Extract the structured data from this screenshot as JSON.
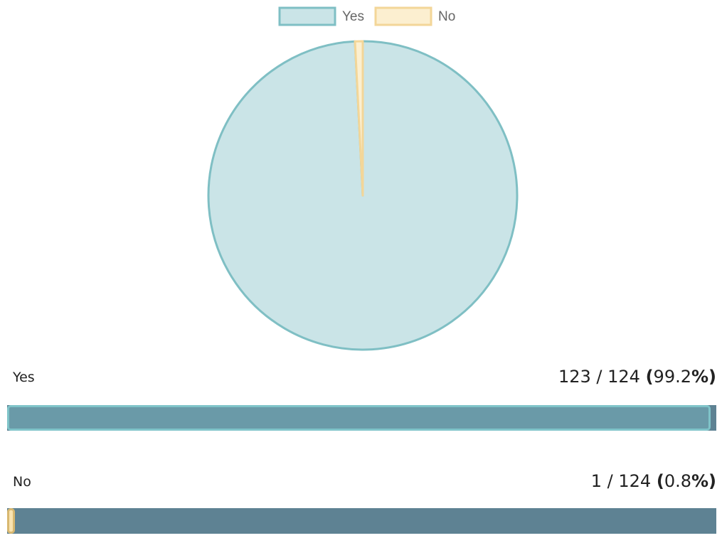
{
  "chart_data": {
    "type": "pie",
    "categories": [
      "Yes",
      "No"
    ],
    "values": [
      123,
      1
    ],
    "total": 124,
    "legend_position": "top",
    "colors": {
      "fill": [
        "#cae4e7",
        "#fcefd0"
      ],
      "border": [
        "#7fbfc4",
        "#f3d698"
      ]
    }
  },
  "results": [
    {
      "label": "Yes",
      "count": "123",
      "separator": " / ",
      "total": "124",
      "open_paren": "(",
      "percent": "99.2",
      "percent_sign": "%",
      "close_paren": ")",
      "fraction": 0.992,
      "fill_color": "#6a9aa8",
      "fill_border": "#7fc4c9"
    },
    {
      "label": "No",
      "count": "1",
      "separator": " / ",
      "total": "124",
      "open_paren": "(",
      "percent": "0.8",
      "percent_sign": "%",
      "close_paren": ")",
      "fraction": 0.008,
      "fill_color": "#f9e3b0",
      "fill_border": "#d8b870"
    }
  ],
  "bar_track_color": "#5e8293"
}
